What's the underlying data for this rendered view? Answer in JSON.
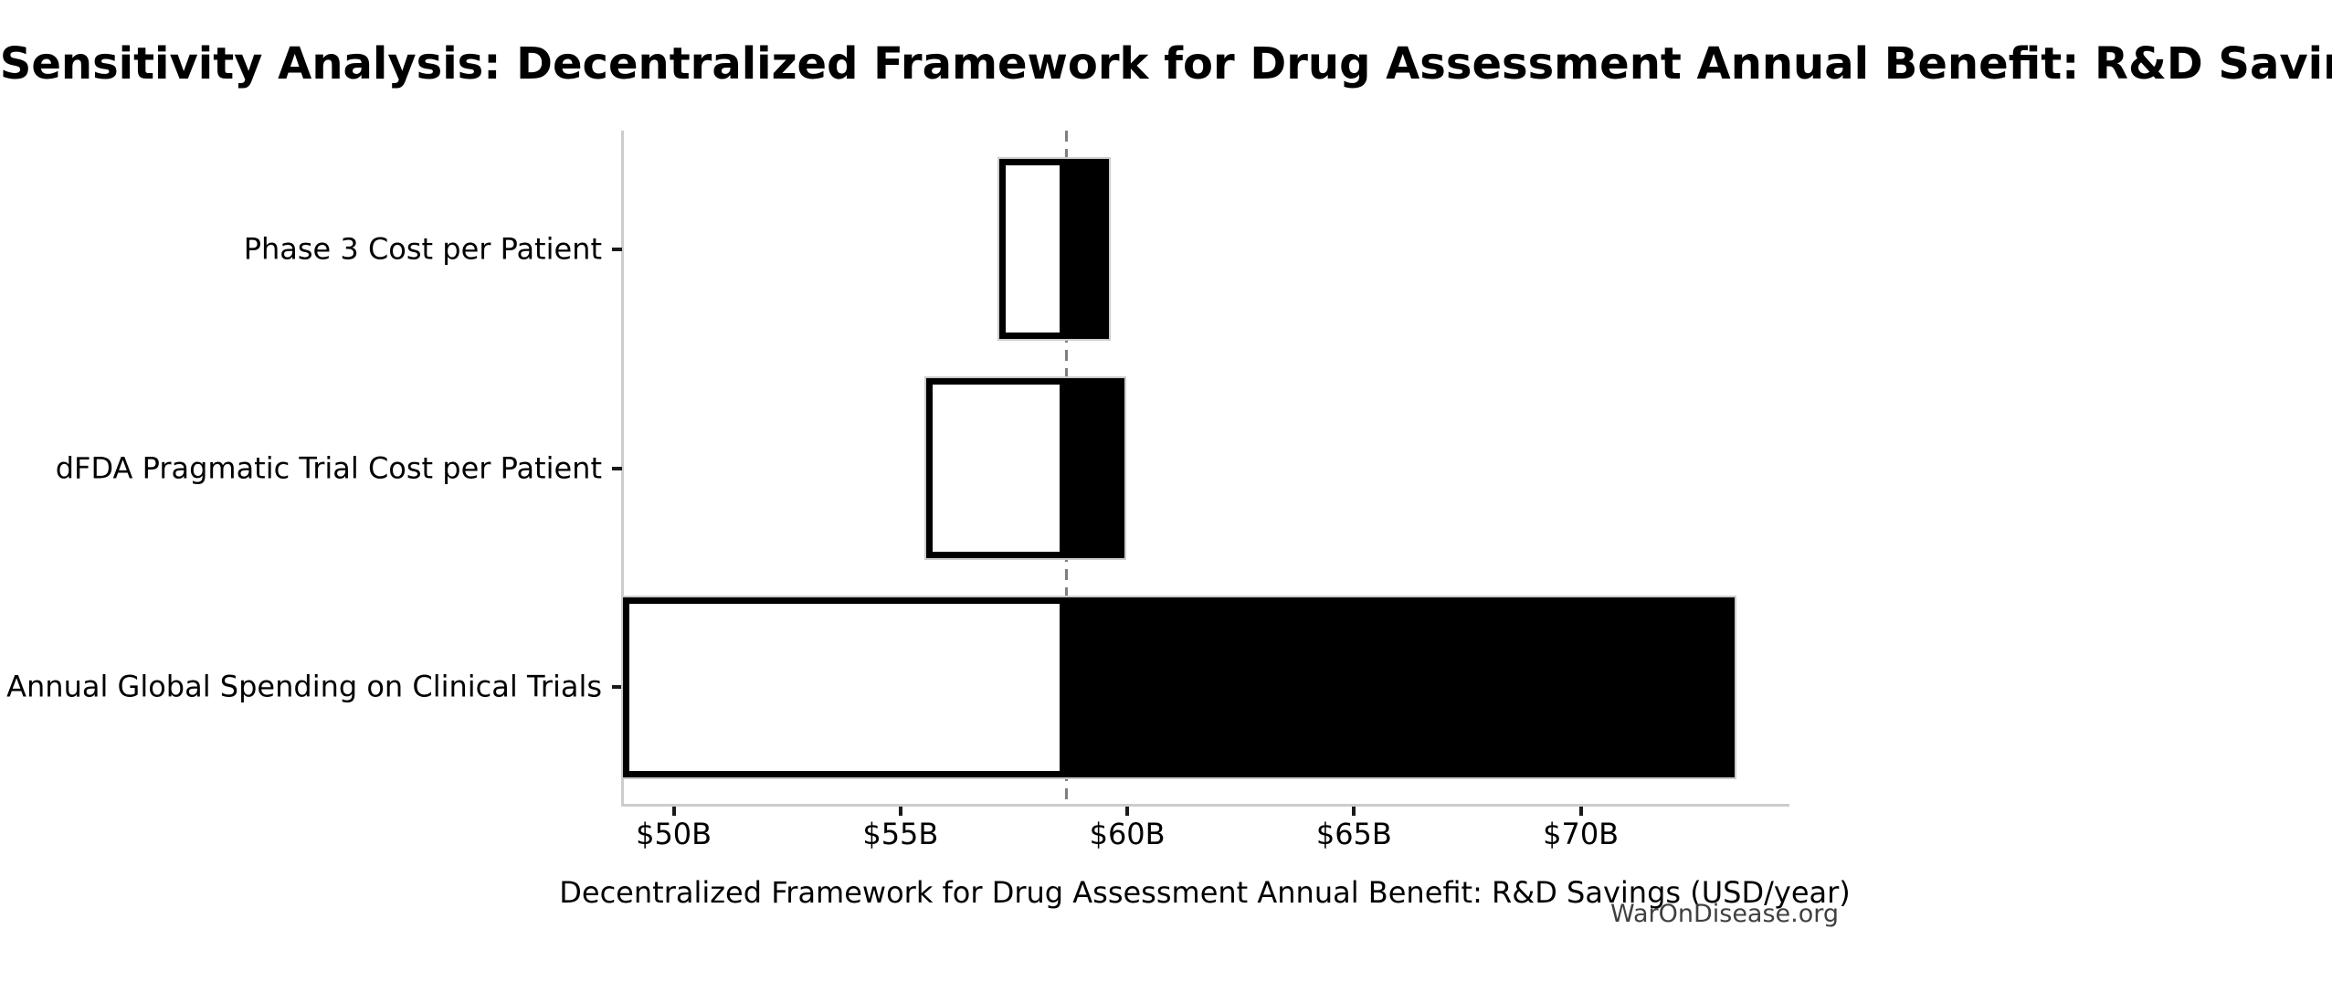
{
  "title": "Sensitivity Analysis: Decentralized Framework for Drug Assessment Annual Benefit: R&D Savings",
  "watermark": "WarOnDisease.org",
  "chart_data": {
    "type": "bar",
    "subtype": "tornado-sensitivity",
    "orientation": "horizontal",
    "title": "Sensitivity Analysis: Decentralized Framework for Drug Assessment Annual Benefit: R&D Savings",
    "xlabel": "Decentralized Framework for Drug Assessment Annual Benefit: R&D Savings (USD/year)",
    "ylabel": "",
    "unit": "USD billions per year",
    "baseline_value": 58.65,
    "xlim": [
      48.88,
      74.6
    ],
    "grid": false,
    "legend": "none",
    "x_ticks": [
      {
        "value": 50,
        "label": "$50B"
      },
      {
        "value": 55,
        "label": "$55B"
      },
      {
        "value": 60,
        "label": "$60B"
      },
      {
        "value": 65,
        "label": "$65B"
      },
      {
        "value": 70,
        "label": "$70B"
      }
    ],
    "rows": [
      {
        "label": "Phase 3 Cost per Patient",
        "low": 57.18,
        "high": 59.6
      },
      {
        "label": "dFDA Pragmatic Trial Cost per Patient",
        "low": 55.57,
        "high": 59.94
      },
      {
        "label": "Annual Global Spending on Clinical Trials",
        "low": 48.88,
        "high": 73.4
      }
    ],
    "colors": {
      "low_side_fill": "#ffffff",
      "low_side_edge": "#000000",
      "high_side_fill": "#000000",
      "range_outline": "#cccccc",
      "baseline_dash": "#7f7f7f",
      "spine": "#cccccc",
      "tick": "#1a1a1a",
      "watermark": "#404040"
    }
  }
}
